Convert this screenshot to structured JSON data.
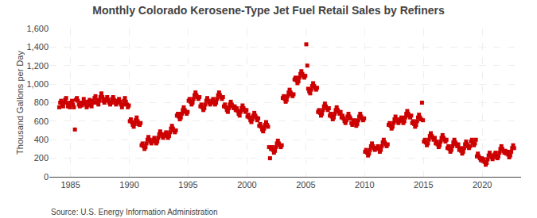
{
  "chart_data": {
    "type": "scatter",
    "title": "Monthly Colorado Kerosene-Type Jet Fuel Retail Sales by Refiners",
    "ylabel": "Thousand Gallons per Day",
    "annotations": [
      "Source: U.S. Energy Information Administration"
    ],
    "color": "#cc0000",
    "marker": "square",
    "grid": true,
    "xlim": [
      1983.2,
      2023.3
    ],
    "ylim": [
      0,
      1600
    ],
    "xticks": [
      1985,
      1990,
      1995,
      2000,
      2005,
      2010,
      2015,
      2020
    ],
    "yticks": [
      0,
      200,
      400,
      600,
      800,
      {
        "value": 1000,
        "label": "1,000"
      },
      {
        "value": 1200,
        "label": "1,200"
      },
      {
        "value": 1400,
        "label": "1,400"
      },
      {
        "value": 1600,
        "label": "1,600"
      }
    ],
    "x": [
      1984.042,
      1984.125,
      1984.208,
      1984.292,
      1984.375,
      1984.458,
      1984.542,
      1984.625,
      1984.708,
      1984.792,
      1984.875,
      1984.958,
      1985.042,
      1985.125,
      1985.208,
      1985.292,
      1985.375,
      1985.458,
      1985.542,
      1985.625,
      1985.708,
      1985.792,
      1985.875,
      1985.958,
      1986.042,
      1986.125,
      1986.208,
      1986.292,
      1986.375,
      1986.458,
      1986.542,
      1986.625,
      1986.708,
      1986.792,
      1986.875,
      1986.958,
      1987.042,
      1987.125,
      1987.208,
      1987.292,
      1987.375,
      1987.458,
      1987.542,
      1987.625,
      1987.708,
      1987.792,
      1987.875,
      1987.958,
      1988.042,
      1988.125,
      1988.208,
      1988.292,
      1988.375,
      1988.458,
      1988.542,
      1988.625,
      1988.708,
      1988.792,
      1988.875,
      1988.958,
      1989.042,
      1989.125,
      1989.208,
      1989.292,
      1989.375,
      1989.458,
      1989.542,
      1989.625,
      1989.708,
      1989.792,
      1989.875,
      1989.958,
      1990.042,
      1990.125,
      1990.208,
      1990.292,
      1990.375,
      1990.458,
      1990.542,
      1990.625,
      1990.708,
      1990.792,
      1990.875,
      1990.958,
      1991.042,
      1991.125,
      1991.208,
      1991.292,
      1991.375,
      1991.458,
      1991.542,
      1991.625,
      1991.708,
      1991.792,
      1991.875,
      1991.958,
      1992.042,
      1992.125,
      1992.208,
      1992.292,
      1992.375,
      1992.458,
      1992.542,
      1992.625,
      1992.708,
      1992.792,
      1992.875,
      1992.958,
      1993.042,
      1993.125,
      1993.208,
      1993.292,
      1993.375,
      1993.458,
      1993.542,
      1993.625,
      1993.708,
      1993.792,
      1993.875,
      1993.958,
      1994.042,
      1994.125,
      1994.208,
      1994.292,
      1994.375,
      1994.458,
      1994.542,
      1994.625,
      1994.708,
      1994.792,
      1994.875,
      1994.958,
      1995.042,
      1995.125,
      1995.208,
      1995.292,
      1995.375,
      1995.458,
      1995.542,
      1995.625,
      1995.708,
      1995.792,
      1995.875,
      1995.958,
      1996.042,
      1996.125,
      1996.208,
      1996.292,
      1996.375,
      1996.458,
      1996.542,
      1996.625,
      1996.708,
      1996.792,
      1996.875,
      1996.958,
      1997.042,
      1997.125,
      1997.208,
      1997.292,
      1997.375,
      1997.458,
      1997.542,
      1997.625,
      1997.708,
      1997.792,
      1997.875,
      1997.958,
      1998.042,
      1998.125,
      1998.208,
      1998.292,
      1998.375,
      1998.458,
      1998.542,
      1998.625,
      1998.708,
      1998.792,
      1998.875,
      1998.958,
      1999.042,
      1999.125,
      1999.208,
      1999.292,
      1999.375,
      1999.458,
      1999.542,
      1999.625,
      1999.708,
      1999.792,
      1999.875,
      1999.958,
      2000.042,
      2000.125,
      2000.208,
      2000.292,
      2000.375,
      2000.458,
      2000.542,
      2000.625,
      2000.708,
      2000.792,
      2000.875,
      2000.958,
      2001.042,
      2001.125,
      2001.208,
      2001.292,
      2001.375,
      2001.458,
      2001.542,
      2001.625,
      2001.708,
      2001.792,
      2001.875,
      2001.958,
      2002.042,
      2002.125,
      2002.208,
      2002.292,
      2002.375,
      2002.458,
      2002.542,
      2002.625,
      2002.708,
      2002.792,
      2002.875,
      2002.958,
      2003.042,
      2003.125,
      2003.208,
      2003.292,
      2003.375,
      2003.458,
      2003.542,
      2003.625,
      2003.708,
      2003.792,
      2003.875,
      2003.958,
      2004.042,
      2004.125,
      2004.208,
      2004.292,
      2004.375,
      2004.458,
      2004.542,
      2004.625,
      2004.708,
      2004.792,
      2004.875,
      2004.958,
      2005.042,
      2005.125,
      2005.208,
      2005.292,
      2005.375,
      2005.458,
      2005.542,
      2005.625,
      2005.708,
      2005.792,
      2005.875,
      2005.958,
      2006.042,
      2006.125,
      2006.208,
      2006.292,
      2006.375,
      2006.458,
      2006.542,
      2006.625,
      2006.708,
      2006.792,
      2006.875,
      2006.958,
      2007.042,
      2007.125,
      2007.208,
      2007.292,
      2007.375,
      2007.458,
      2007.542,
      2007.625,
      2007.708,
      2007.792,
      2007.875,
      2007.958,
      2008.042,
      2008.125,
      2008.208,
      2008.292,
      2008.375,
      2008.458,
      2008.542,
      2008.625,
      2008.708,
      2008.792,
      2008.875,
      2008.958,
      2009.042,
      2009.125,
      2009.208,
      2009.292,
      2009.375,
      2009.458,
      2009.542,
      2009.625,
      2009.708,
      2009.792,
      2009.875,
      2009.958,
      2010.042,
      2010.125,
      2010.208,
      2010.292,
      2010.375,
      2010.458,
      2010.542,
      2010.625,
      2010.708,
      2010.792,
      2010.875,
      2010.958,
      2011.042,
      2011.125,
      2011.208,
      2011.292,
      2011.375,
      2011.458,
      2011.542,
      2011.625,
      2011.708,
      2011.792,
      2011.875,
      2011.958,
      2012.042,
      2012.125,
      2012.208,
      2012.292,
      2012.375,
      2012.458,
      2012.542,
      2012.625,
      2012.708,
      2012.792,
      2012.875,
      2012.958,
      2013.042,
      2013.125,
      2013.208,
      2013.292,
      2013.375,
      2013.458,
      2013.542,
      2013.625,
      2013.708,
      2013.792,
      2013.875,
      2013.958,
      2014.042,
      2014.125,
      2014.208,
      2014.292,
      2014.375,
      2014.458,
      2014.542,
      2014.625,
      2014.708,
      2014.792,
      2014.875,
      2014.958,
      2015.042,
      2015.125,
      2015.208,
      2015.292,
      2015.375,
      2015.458,
      2015.542,
      2015.625,
      2015.708,
      2015.792,
      2015.875,
      2015.958,
      2016.042,
      2016.125,
      2016.208,
      2016.292,
      2016.375,
      2016.458,
      2016.542,
      2016.625,
      2016.708,
      2016.792,
      2016.875,
      2016.958,
      2017.042,
      2017.125,
      2017.208,
      2017.292,
      2017.375,
      2017.458,
      2017.542,
      2017.625,
      2017.708,
      2017.792,
      2017.875,
      2017.958,
      2018.042,
      2018.125,
      2018.208,
      2018.292,
      2018.375,
      2018.458,
      2018.542,
      2018.625,
      2018.708,
      2018.792,
      2018.875,
      2018.958,
      2019.042,
      2019.125,
      2019.208,
      2019.292,
      2019.375,
      2019.458,
      2019.542,
      2019.625,
      2019.708,
      2019.792,
      2019.875,
      2019.958,
      2020.042,
      2020.125,
      2020.208,
      2020.292,
      2020.375,
      2020.458,
      2020.542,
      2020.625,
      2020.708,
      2020.792,
      2020.875,
      2020.958,
      2021.042,
      2021.125,
      2021.208,
      2021.292,
      2021.375,
      2021.458,
      2021.542,
      2021.625,
      2021.708,
      2021.792,
      2021.875,
      2021.958,
      2022.042,
      2022.125,
      2022.208,
      2022.292,
      2022.375,
      2022.458,
      2022.542,
      2022.625,
      2022.708
    ],
    "values": [
      750,
      800,
      820,
      780,
      760,
      800,
      830,
      850,
      800,
      760,
      780,
      750,
      800,
      820,
      780,
      750,
      510,
      830,
      850,
      820,
      780,
      760,
      800,
      770,
      800,
      840,
      810,
      780,
      750,
      770,
      810,
      830,
      780,
      760,
      820,
      800,
      850,
      870,
      830,
      800,
      780,
      820,
      860,
      900,
      860,
      820,
      800,
      820,
      840,
      860,
      830,
      800,
      780,
      800,
      840,
      860,
      830,
      800,
      780,
      800,
      820,
      840,
      810,
      780,
      750,
      780,
      820,
      850,
      810,
      780,
      750,
      770,
      600,
      620,
      590,
      560,
      540,
      570,
      610,
      640,
      600,
      570,
      560,
      580,
      340,
      360,
      330,
      300,
      320,
      360,
      400,
      430,
      400,
      380,
      360,
      380,
      400,
      420,
      390,
      360,
      380,
      420,
      460,
      490,
      460,
      440,
      420,
      440,
      460,
      480,
      450,
      420,
      440,
      480,
      520,
      550,
      520,
      500,
      480,
      500,
      660,
      680,
      650,
      620,
      640,
      680,
      720,
      750,
      720,
      700,
      680,
      700,
      820,
      840,
      810,
      780,
      800,
      840,
      880,
      910,
      880,
      860,
      840,
      860,
      760,
      780,
      750,
      720,
      740,
      780,
      820,
      850,
      820,
      800,
      780,
      800,
      820,
      840,
      810,
      780,
      800,
      840,
      880,
      910,
      880,
      860,
      840,
      860,
      760,
      780,
      750,
      720,
      700,
      740,
      780,
      810,
      780,
      760,
      740,
      760,
      720,
      740,
      710,
      680,
      660,
      700,
      740,
      770,
      740,
      720,
      700,
      720,
      650,
      670,
      640,
      610,
      590,
      620,
      660,
      690,
      660,
      640,
      610,
      630,
      550,
      570,
      540,
      510,
      490,
      520,
      560,
      590,
      560,
      540,
      320,
      200,
      300,
      320,
      290,
      260,
      280,
      320,
      360,
      390,
      360,
      340,
      320,
      340,
      850,
      870,
      840,
      810,
      830,
      870,
      910,
      940,
      910,
      890,
      870,
      890,
      1050,
      1070,
      1040,
      1010,
      1030,
      1070,
      1110,
      1140,
      1110,
      1090,
      1070,
      1090,
      1430,
      1200,
      950,
      920,
      900,
      940,
      980,
      1010,
      980,
      960,
      940,
      960,
      700,
      720,
      690,
      660,
      680,
      720,
      760,
      790,
      760,
      740,
      720,
      740,
      660,
      680,
      650,
      620,
      640,
      680,
      720,
      750,
      720,
      700,
      680,
      700,
      640,
      660,
      630,
      600,
      580,
      610,
      650,
      680,
      650,
      630,
      580,
      560,
      590,
      610,
      580,
      550,
      570,
      610,
      650,
      680,
      650,
      630,
      610,
      630,
      270,
      290,
      260,
      230,
      250,
      290,
      330,
      360,
      330,
      310,
      290,
      310,
      310,
      330,
      300,
      270,
      290,
      330,
      370,
      400,
      370,
      350,
      330,
      350,
      560,
      580,
      550,
      520,
      540,
      580,
      620,
      650,
      620,
      600,
      580,
      600,
      620,
      640,
      610,
      580,
      600,
      640,
      680,
      710,
      680,
      660,
      640,
      660,
      580,
      600,
      570,
      540,
      560,
      600,
      640,
      670,
      640,
      620,
      800,
      610,
      380,
      400,
      370,
      340,
      360,
      400,
      440,
      470,
      440,
      420,
      400,
      420,
      360,
      380,
      350,
      320,
      340,
      380,
      420,
      450,
      420,
      400,
      380,
      400,
      310,
      330,
      300,
      270,
      290,
      330,
      370,
      400,
      370,
      350,
      330,
      350,
      290,
      310,
      280,
      250,
      270,
      310,
      350,
      380,
      350,
      330,
      310,
      330,
      380,
      400,
      370,
      340,
      360,
      400,
      220,
      250,
      220,
      200,
      180,
      200,
      170,
      190,
      160,
      130,
      150,
      190,
      230,
      260,
      230,
      210,
      190,
      210,
      240,
      260,
      230,
      200,
      220,
      260,
      300,
      330,
      300,
      280,
      260,
      280,
      250,
      270,
      240,
      210,
      230,
      270,
      310,
      340,
      310
    ]
  }
}
